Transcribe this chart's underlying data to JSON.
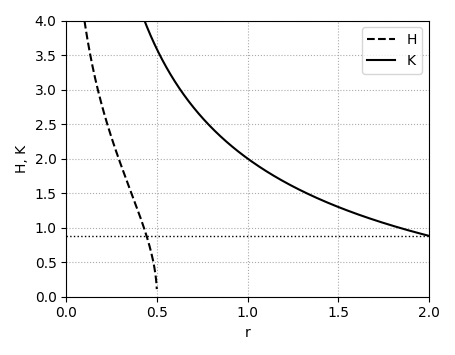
{
  "xlabel": "r",
  "ylabel": "H, K",
  "xlim": [
    0,
    2
  ],
  "ylim": [
    0,
    4
  ],
  "xticks": [
    0,
    0.5,
    1.0,
    1.5,
    2.0
  ],
  "yticks": [
    0,
    0.5,
    1.0,
    1.5,
    2.0,
    2.5,
    3.0,
    3.5,
    4.0
  ],
  "legend_H": "H",
  "legend_K": "K",
  "figsize": [
    4.55,
    3.55
  ],
  "dpi": 100,
  "line_color": "black",
  "grid_color": "#aaaaaa",
  "grid_style": "dotted"
}
